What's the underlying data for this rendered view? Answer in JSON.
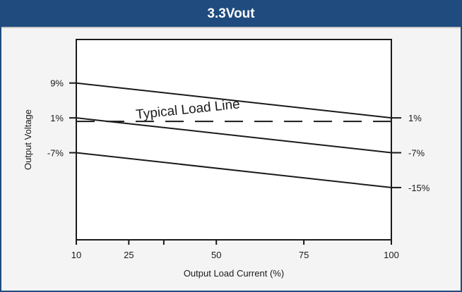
{
  "chart_data": {
    "type": "line",
    "title": "3.3Vout",
    "xlabel": "Output Load Current (%)",
    "ylabel": "Output Voltage",
    "xlim": [
      10,
      100
    ],
    "ylim": [
      -27,
      19
    ],
    "x_ticks": [
      10,
      25,
      50,
      75,
      100
    ],
    "x_minor_ticks": [
      35
    ],
    "y_ticks_left": [
      "9%",
      "1%",
      "-7%"
    ],
    "y_ticks_left_values": [
      9,
      1,
      -7
    ],
    "y_ticks_right": [
      "1%",
      "-7%",
      "-15%"
    ],
    "y_ticks_right_values": [
      1,
      -7,
      -15
    ],
    "series": [
      {
        "x": [
          10,
          100
        ],
        "values": [
          9,
          1
        ],
        "style": "solid",
        "color": "#1a1a1a"
      },
      {
        "x": [
          10,
          100
        ],
        "values": [
          1,
          -7
        ],
        "style": "solid",
        "color": "#1a1a1a"
      },
      {
        "x": [
          10,
          100
        ],
        "values": [
          -7,
          -15
        ],
        "style": "solid",
        "color": "#1a1a1a"
      },
      {
        "x": [
          10,
          100
        ],
        "values": [
          0.2,
          0.2
        ],
        "style": "dashed",
        "color": "#1a1a1a"
      }
    ],
    "annotations": [
      {
        "text": "Typical Load Line",
        "x": 42,
        "y": 2,
        "rotation": -6
      }
    ],
    "grid": false,
    "legend": "none"
  }
}
